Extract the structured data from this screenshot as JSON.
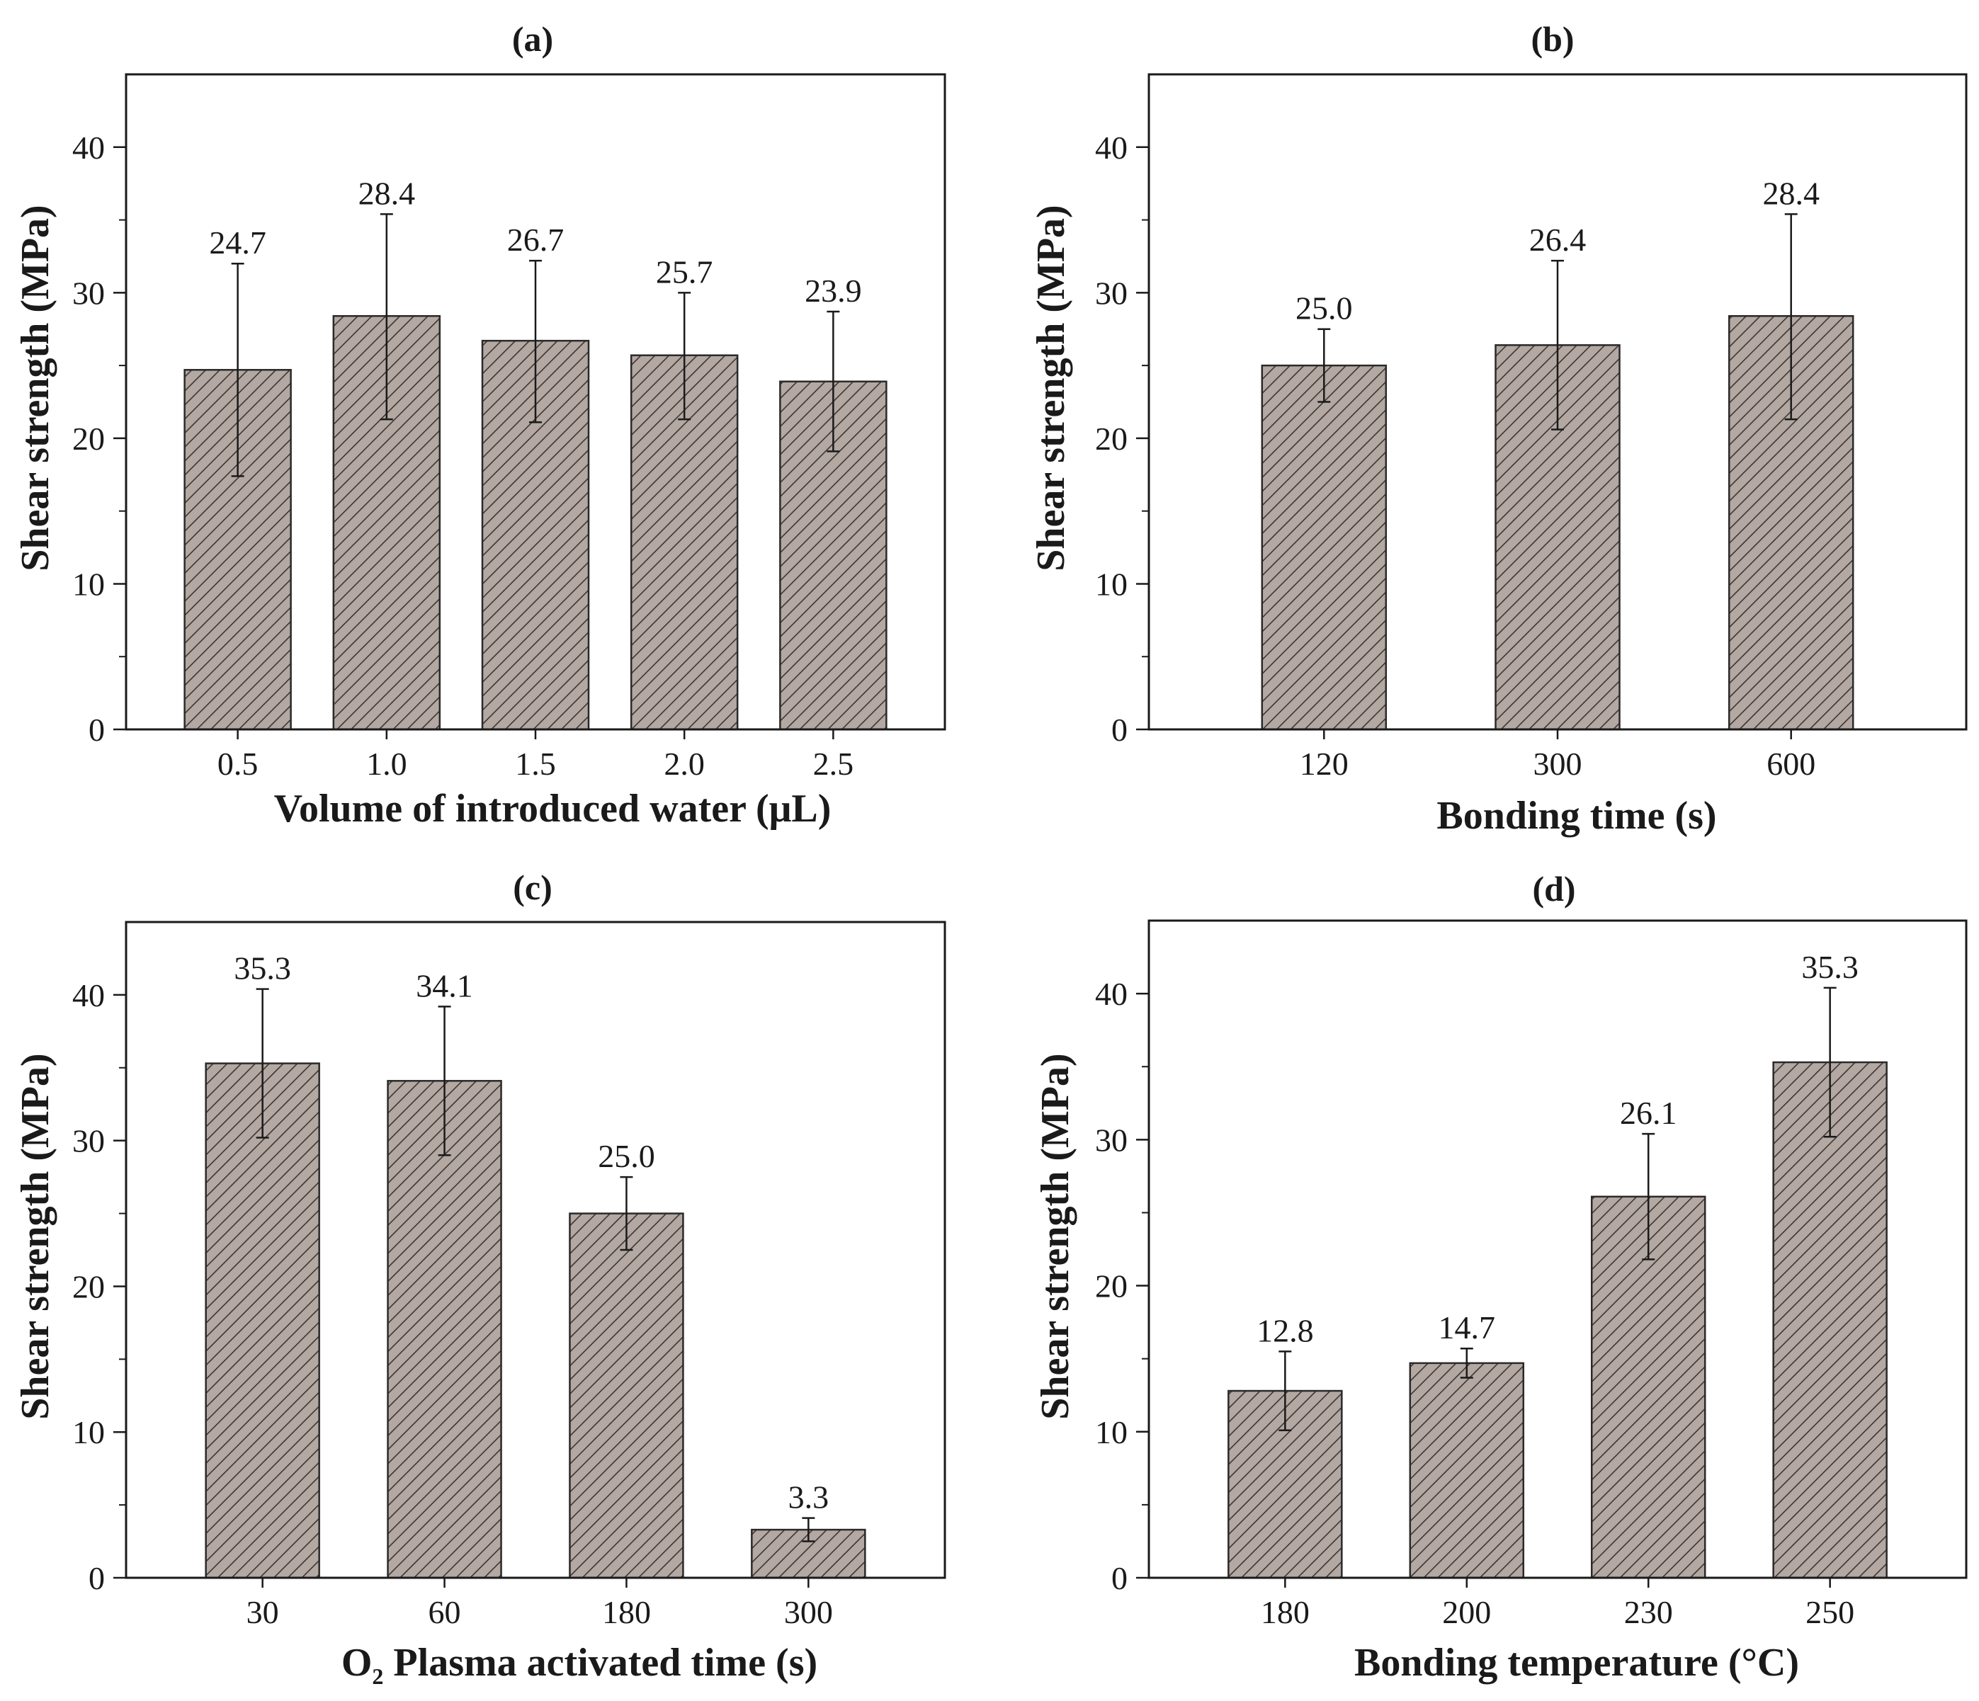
{
  "chart_data": [
    {
      "type": "bar",
      "panel": "(a)",
      "title": "(a)",
      "xlabel": "Volume of introduced water (μL)",
      "ylabel": "Shear strength (MPa)",
      "categories": [
        "0.5",
        "1.0",
        "1.5",
        "2.0",
        "2.5"
      ],
      "values": [
        24.7,
        28.4,
        26.7,
        25.7,
        23.9
      ],
      "value_labels": [
        "24.7",
        "28.4",
        "26.7",
        "25.7",
        "23.9"
      ],
      "error_low": [
        17.4,
        21.3,
        21.1,
        21.3,
        19.1
      ],
      "error_high": [
        32.0,
        35.4,
        32.2,
        30.0,
        28.7
      ],
      "ylim": [
        0,
        45
      ],
      "yticks": [
        0,
        10,
        20,
        30,
        40
      ],
      "ytick_labels": [
        "0",
        "10",
        "20",
        "30",
        "40"
      ]
    },
    {
      "type": "bar",
      "panel": "(b)",
      "title": "(b)",
      "xlabel": "Bonding time (s)",
      "ylabel": "Shear strength (MPa)",
      "categories": [
        "120",
        "300",
        "600"
      ],
      "values": [
        25.0,
        26.4,
        28.4
      ],
      "value_labels": [
        "25.0",
        "26.4",
        "28.4"
      ],
      "error_low": [
        22.5,
        20.6,
        21.3
      ],
      "error_high": [
        27.5,
        32.2,
        35.4
      ],
      "ylim": [
        0,
        45
      ],
      "yticks": [
        0,
        10,
        20,
        30,
        40
      ],
      "ytick_labels": [
        "0",
        "10",
        "20",
        "30",
        "40"
      ]
    },
    {
      "type": "bar",
      "panel": "(c)",
      "title": "(c)",
      "xlabel_main": "O",
      "xlabel_sub": "2",
      "xlabel_rest": " Plasma activated time (s)",
      "ylabel": "Shear strength (MPa)",
      "categories": [
        "30",
        "60",
        "180",
        "300"
      ],
      "values": [
        35.3,
        34.1,
        25.0,
        3.3
      ],
      "value_labels": [
        "35.3",
        "34.1",
        "25.0",
        "3.3"
      ],
      "error_low": [
        30.2,
        29.0,
        22.5,
        2.5
      ],
      "error_high": [
        40.4,
        39.2,
        27.5,
        4.1
      ],
      "ylim": [
        0,
        45
      ],
      "yticks": [
        0,
        10,
        20,
        30,
        40
      ],
      "ytick_labels": [
        "0",
        "10",
        "20",
        "30",
        "40"
      ]
    },
    {
      "type": "bar",
      "panel": "(d)",
      "title": "(d)",
      "xlabel": "Bonding temperature (°C)",
      "ylabel": "Shear strength (MPa)",
      "categories": [
        "180",
        "200",
        "230",
        "250"
      ],
      "values": [
        12.8,
        14.7,
        26.1,
        35.3
      ],
      "value_labels": [
        "12.8",
        "14.7",
        "26.1",
        "35.3"
      ],
      "error_low": [
        10.1,
        13.7,
        21.8,
        30.2
      ],
      "error_high": [
        15.5,
        15.7,
        30.4,
        40.4
      ],
      "ylim": [
        0,
        45
      ],
      "yticks": [
        0,
        10,
        20,
        30,
        40
      ],
      "ytick_labels": [
        "0",
        "10",
        "20",
        "30",
        "40"
      ]
    }
  ],
  "colors": {
    "bar_fill": "#b3a8a2",
    "hatch": "#3d3533",
    "axis": "#1a1a1a"
  }
}
